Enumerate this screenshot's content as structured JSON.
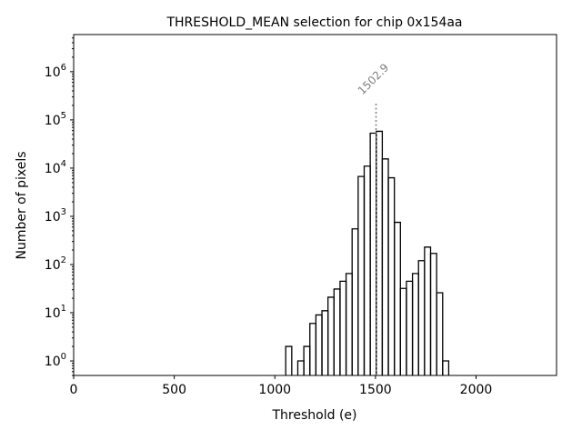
{
  "chart_data": {
    "type": "histogram",
    "title": "THRESHOLD_MEAN selection for chip 0x154aa",
    "xlabel": "Threshold (e)",
    "ylabel": "Number of pixels",
    "xlim": [
      0,
      2400
    ],
    "ylim": [
      0.5,
      5900000
    ],
    "yscale": "log",
    "grid": false,
    "xticks": [
      0,
      500,
      1000,
      1500,
      2000
    ],
    "xtick_labels": [
      "0",
      "500",
      "1000",
      "1500",
      "2000"
    ],
    "yticks_exp": [
      0,
      1,
      2,
      3,
      4,
      5,
      6
    ],
    "ytick_base": "10",
    "bin_start": 1054,
    "bin_width": 30,
    "counts": [
      2,
      0,
      1,
      2,
      6,
      9,
      11,
      21,
      31,
      45,
      65,
      550,
      6700,
      11000,
      53000,
      58000,
      15500,
      6300,
      750,
      32,
      45,
      65,
      120,
      230,
      170,
      26,
      1
    ],
    "marker": {
      "x": 1502.9,
      "ymax": 230000,
      "label": "1502.9",
      "color": "#808080"
    },
    "line_color": "#000000"
  }
}
